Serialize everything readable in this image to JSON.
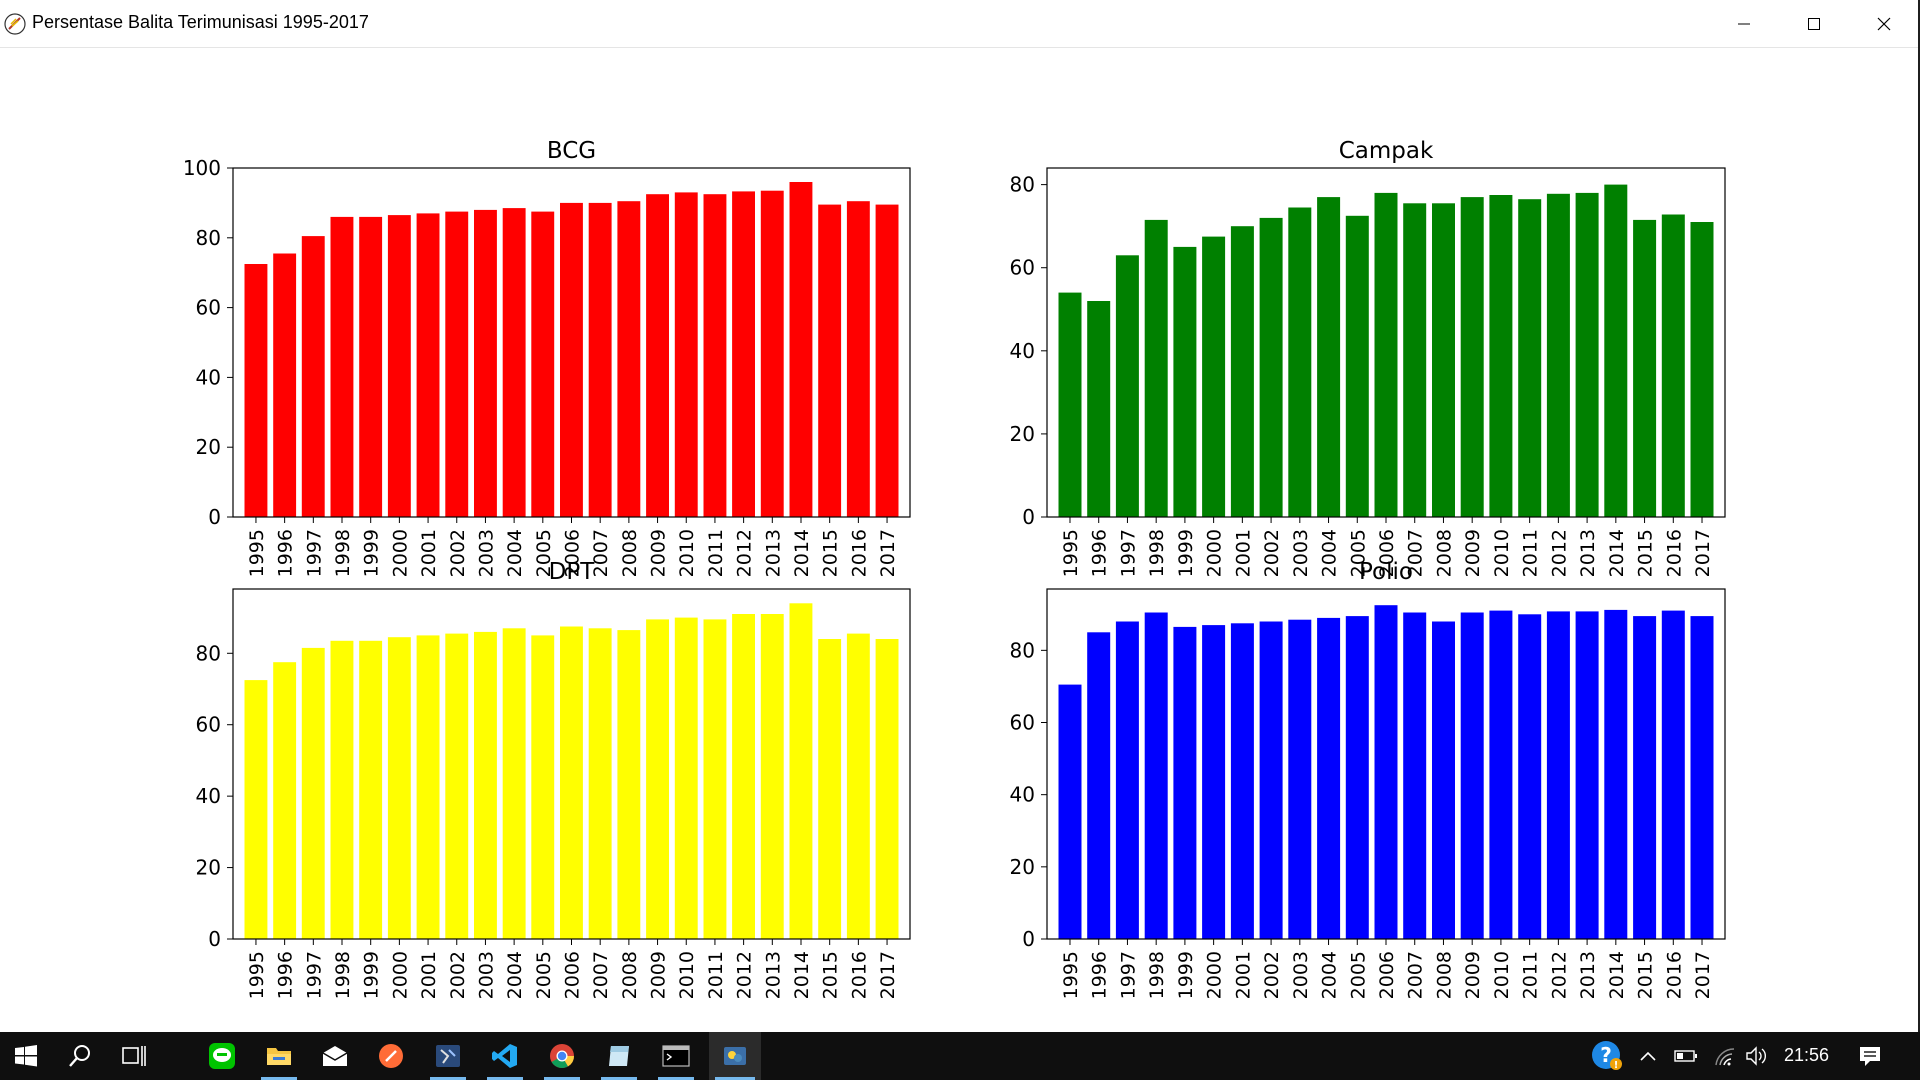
{
  "window": {
    "title": "Persentase Balita Terimunisasi 1995-2017",
    "icon": "python-feather-icon"
  },
  "chart_data": [
    {
      "type": "bar",
      "title": "BCG",
      "color": "#ff0000",
      "ylim": [
        0,
        100
      ],
      "yticks": [
        0,
        20,
        40,
        60,
        80,
        100
      ],
      "categories": [
        "1995",
        "1996",
        "1997",
        "1998",
        "1999",
        "2000",
        "2001",
        "2002",
        "2003",
        "2004",
        "2005",
        "2006",
        "2007",
        "2008",
        "2009",
        "2010",
        "2011",
        "2012",
        "2013",
        "2014",
        "2015",
        "2016",
        "2017"
      ],
      "values": [
        72.5,
        75.5,
        80.5,
        86,
        86,
        86.5,
        87,
        87.5,
        88,
        88.5,
        87.5,
        90,
        90,
        90.5,
        92.5,
        93,
        92.5,
        93.3,
        93.5,
        96,
        89.5,
        90.5,
        89.5
      ]
    },
    {
      "type": "bar",
      "title": "Campak",
      "color": "#008000",
      "ylim": [
        0,
        84
      ],
      "yticks": [
        0,
        20,
        40,
        60,
        80
      ],
      "categories": [
        "1995",
        "1996",
        "1997",
        "1998",
        "1999",
        "2000",
        "2001",
        "2002",
        "2003",
        "2004",
        "2005",
        "2006",
        "2007",
        "2008",
        "2009",
        "2010",
        "2011",
        "2012",
        "2013",
        "2014",
        "2015",
        "2016",
        "2017"
      ],
      "values": [
        54,
        52,
        63,
        71.5,
        65,
        67.5,
        70,
        72,
        74.5,
        77,
        72.5,
        78,
        75.5,
        75.5,
        77,
        77.5,
        76.5,
        77.8,
        78,
        80,
        71.5,
        72.8,
        71
      ]
    },
    {
      "type": "bar",
      "title": "DPT",
      "color": "#ffff00",
      "ylim": [
        0,
        98
      ],
      "yticks": [
        0,
        20,
        40,
        60,
        80
      ],
      "categories": [
        "1995",
        "1996",
        "1997",
        "1998",
        "1999",
        "2000",
        "2001",
        "2002",
        "2003",
        "2004",
        "2005",
        "2006",
        "2007",
        "2008",
        "2009",
        "2010",
        "2011",
        "2012",
        "2013",
        "2014",
        "2015",
        "2016",
        "2017"
      ],
      "values": [
        72.5,
        77.5,
        81.5,
        83.5,
        83.5,
        84.5,
        85,
        85.5,
        86,
        87,
        85,
        87.5,
        87,
        86.5,
        89.5,
        90,
        89.5,
        91,
        91,
        94,
        84,
        85.5,
        84
      ]
    },
    {
      "type": "bar",
      "title": "Polio",
      "color": "#0000ff",
      "ylim": [
        0,
        97
      ],
      "yticks": [
        0,
        20,
        40,
        60,
        80
      ],
      "categories": [
        "1995",
        "1996",
        "1997",
        "1998",
        "1999",
        "2000",
        "2001",
        "2002",
        "2003",
        "2004",
        "2005",
        "2006",
        "2007",
        "2008",
        "2009",
        "2010",
        "2011",
        "2012",
        "2013",
        "2014",
        "2015",
        "2016",
        "2017"
      ],
      "values": [
        70.5,
        85,
        88,
        90.5,
        86.5,
        87,
        87.5,
        88,
        88.5,
        89,
        89.5,
        92.5,
        90.5,
        88,
        90.5,
        91,
        90,
        90.8,
        90.8,
        91.2,
        89.5,
        91,
        89.5
      ]
    }
  ],
  "taskbar": {
    "apps": [
      "windows-start-icon",
      "search-icon",
      "task-view-icon",
      "line-messenger-icon",
      "file-explorer-icon",
      "mail-icon",
      "postman-icon",
      "ssms-icon",
      "vscode-icon",
      "chrome-icon",
      "sticky-notes-icon",
      "terminal-icon",
      "python-icon"
    ],
    "clock": "21:56"
  }
}
